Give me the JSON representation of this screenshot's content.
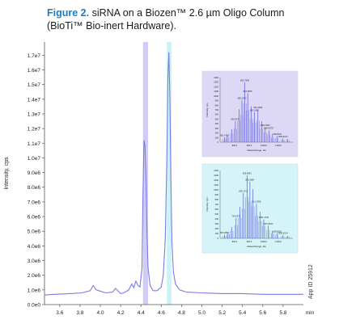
{
  "title": {
    "figure": "Figure 2.",
    "line1": "siRNA on a Biozen™ 2.6 µm Oligo Column",
    "line2": "(BioTi™ Bio-inert Hardware)."
  },
  "app_id": "App ID 25912",
  "colors": {
    "trace": "#7b7be6",
    "band1": "#c9c3f3",
    "band2": "#bff1f6",
    "inset1_bg": "#dcd8f6",
    "inset2_bg": "#d4f4f8",
    "figure_label": "#1b7fbf"
  },
  "chart_data": {
    "type": "line",
    "ylabel": "Intensity, cps",
    "xunit": "min",
    "xlim": [
      3.45,
      6.0
    ],
    "ylim": [
      0,
      17900000
    ],
    "x_ticks": [
      3.6,
      3.8,
      4.0,
      4.2,
      4.4,
      4.6,
      4.8,
      5.0,
      5.2,
      5.4,
      5.6,
      5.8
    ],
    "x_tick_labels": [
      "3.6",
      "3.8",
      "4.0",
      "4.2",
      "4.4",
      "4.6",
      "4.8",
      "5.0",
      "5.2",
      "5.4",
      "5.6",
      "5.8"
    ],
    "y_ticks": [
      0,
      1000000,
      2000000,
      3000000,
      4000000,
      5000000,
      6000000,
      7000000,
      8000000,
      9000000,
      10000000,
      11000000,
      12000000,
      13000000,
      14000000,
      15000000,
      16000000,
      17000000
    ],
    "y_tick_labels": [
      "0.0e0",
      "1.0e6",
      "2.0e6",
      "3.0e6",
      "4.0e6",
      "5.0e6",
      "6.0e6",
      "7.0e6",
      "8.0e6",
      "9.0e6",
      "1.0e7",
      "1.1e7",
      "1.2e7",
      "1.3e7",
      "1.4e7",
      "1.5e7",
      "1.6e7",
      "1.7e7"
    ],
    "highlight_ranges": [
      [
        4.42,
        4.47
      ],
      [
        4.655,
        4.7
      ]
    ],
    "series": [
      {
        "x": [
          3.45,
          3.55,
          3.7,
          3.82,
          3.9,
          3.93,
          3.96,
          4.05,
          4.12,
          4.15,
          4.18,
          4.2,
          4.23,
          4.28,
          4.31,
          4.33,
          4.35,
          4.37,
          4.39,
          4.41,
          4.42,
          4.43,
          4.44,
          4.45,
          4.46,
          4.47,
          4.49,
          4.52,
          4.56,
          4.6,
          4.62,
          4.64,
          4.655,
          4.665,
          4.675,
          4.685,
          4.695,
          4.705,
          4.72,
          4.74,
          4.78,
          4.85,
          5.0,
          5.2,
          5.4,
          5.6,
          5.8,
          6.0
        ],
        "y": [
          650000,
          700000,
          750000,
          800000,
          950000,
          1300000,
          1000000,
          800000,
          850000,
          1100000,
          900000,
          750000,
          800000,
          1000000,
          1400000,
          1150000,
          1600000,
          1300000,
          1200000,
          2500000,
          7500000,
          11200000,
          10800000,
          8500000,
          4800000,
          2500000,
          1300000,
          950000,
          950000,
          1200000,
          2000000,
          4500000,
          9800000,
          15500000,
          17200000,
          14000000,
          8500000,
          4200000,
          2200000,
          1400000,
          1000000,
          850000,
          800000,
          750000,
          750000,
          700000,
          700000,
          700000
        ]
      }
    ]
  },
  "inset1": {
    "ylabel": "Intensity, cps",
    "xlabel": "Mass/Charge, Da",
    "y_tick_labels": [
      "1400",
      "1300",
      "1200",
      "1100",
      "1000",
      "900",
      "800",
      "700",
      "600",
      "500",
      "400",
      "300",
      "200",
      "100",
      "0"
    ],
    "x_tick_labels": [
      "800.0",
      "900.0",
      "1000.0",
      "1100.0"
    ],
    "peaks": [
      {
        "x": 0.06,
        "h": 0.08,
        "label": "591.4753"
      },
      {
        "x": 0.1,
        "h": 0.12,
        "label": ""
      },
      {
        "x": 0.16,
        "h": 0.22,
        "label": ""
      },
      {
        "x": 0.21,
        "h": 0.35,
        "label": "692.9271"
      },
      {
        "x": 0.26,
        "h": 0.55,
        "label": ""
      },
      {
        "x": 0.3,
        "h": 0.7,
        "label": "683.1092"
      },
      {
        "x": 0.34,
        "h": 1.0,
        "label": "803.7946"
      },
      {
        "x": 0.38,
        "h": 0.82,
        "label": "824.8875"
      },
      {
        "x": 0.43,
        "h": 0.6,
        "label": ""
      },
      {
        "x": 0.47,
        "h": 0.5,
        "label": "902.1060"
      },
      {
        "x": 0.52,
        "h": 0.55,
        "label": "943.4009"
      },
      {
        "x": 0.57,
        "h": 0.35,
        "label": ""
      },
      {
        "x": 0.62,
        "h": 0.25,
        "label": "1003.0567"
      },
      {
        "x": 0.67,
        "h": 0.2,
        "label": "1064.5757"
      },
      {
        "x": 0.72,
        "h": 0.12,
        "label": ""
      },
      {
        "x": 0.78,
        "h": 0.1,
        "label": "1152.8011"
      },
      {
        "x": 0.86,
        "h": 0.06,
        "label": "1250.9214"
      },
      {
        "x": 0.93,
        "h": 0.05,
        "label": ""
      }
    ]
  },
  "inset2": {
    "ylabel": "Intensity, cps",
    "xlabel": "Mass/Charge, Da",
    "y_tick_labels": [
      "1400",
      "1300",
      "1200",
      "1100",
      "1000",
      "900",
      "800",
      "700",
      "600",
      "500",
      "400",
      "300",
      "200",
      "100",
      "0"
    ],
    "x_tick_labels": [
      "800.0",
      "900.0",
      "1000.0",
      "1100.0"
    ],
    "peaks": [
      {
        "x": 0.06,
        "h": 0.06,
        "label": "600.2891"
      },
      {
        "x": 0.11,
        "h": 0.1,
        "label": ""
      },
      {
        "x": 0.16,
        "h": 0.18,
        "label": ""
      },
      {
        "x": 0.22,
        "h": 0.32,
        "label": "724.6075"
      },
      {
        "x": 0.27,
        "h": 0.5,
        "label": ""
      },
      {
        "x": 0.32,
        "h": 0.72,
        "label": "802.1715"
      },
      {
        "x": 0.37,
        "h": 1.0,
        "label": "825.4832"
      },
      {
        "x": 0.41,
        "h": 0.9,
        "label": "863.2864"
      },
      {
        "x": 0.45,
        "h": 0.78,
        "label": ""
      },
      {
        "x": 0.5,
        "h": 0.55,
        "label": "911.3306"
      },
      {
        "x": 0.55,
        "h": 0.42,
        "label": ""
      },
      {
        "x": 0.6,
        "h": 0.3,
        "label": "1001.1715"
      },
      {
        "x": 0.66,
        "h": 0.2,
        "label": "1057.8512"
      },
      {
        "x": 0.72,
        "h": 0.12,
        "label": ""
      },
      {
        "x": 0.78,
        "h": 0.08,
        "label": "1150.8011"
      },
      {
        "x": 0.86,
        "h": 0.05,
        "label": "1200.9214"
      },
      {
        "x": 0.93,
        "h": 0.04,
        "label": ""
      }
    ]
  }
}
